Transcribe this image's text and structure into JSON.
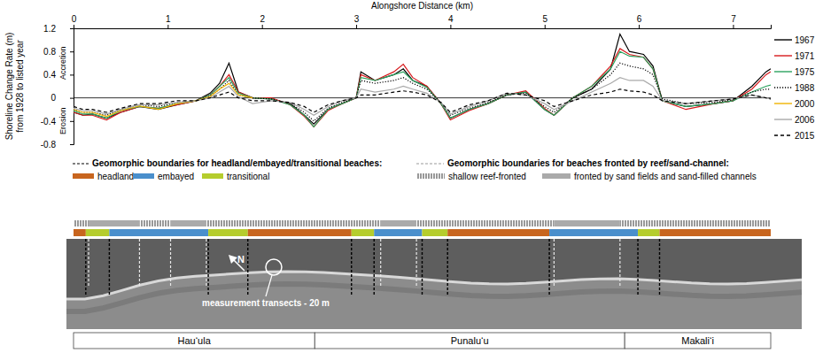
{
  "chart_data": {
    "type": "line",
    "x_label": "Alongshore Distance (km)",
    "y_label": [
      "Shoreline Change Rate (m)",
      "from 1928 to listed year"
    ],
    "annotations": {
      "accretion": "Accretion",
      "erosion": "Erosion",
      "north": "N",
      "transects": "measurement transects - 20 m"
    },
    "x": [
      0,
      0.1,
      0.2,
      0.35,
      0.5,
      0.7,
      0.9,
      1.1,
      1.3,
      1.45,
      1.55,
      1.65,
      1.75,
      1.9,
      2.1,
      2.3,
      2.45,
      2.55,
      2.7,
      2.85,
      3.0,
      3.05,
      3.2,
      3.4,
      3.5,
      3.6,
      3.75,
      3.9,
      4.0,
      4.2,
      4.4,
      4.6,
      4.8,
      5.0,
      5.1,
      5.3,
      5.5,
      5.7,
      5.8,
      5.9,
      6.05,
      6.15,
      6.25,
      6.5,
      6.8,
      7.0,
      7.2,
      7.35,
      7.4
    ],
    "xlim": [
      0,
      7.4
    ],
    "xticks": [
      0,
      1,
      2,
      3,
      4,
      5,
      6,
      7
    ],
    "ylim": [
      -0.8,
      1.2
    ],
    "yticks": [
      -0.8,
      -0.4,
      0,
      0.4,
      0.8,
      1.2
    ],
    "baseline": 0,
    "legend": "right",
    "series": [
      {
        "name": "1967",
        "color": "#000000",
        "line_style": "solid",
        "values": [
          -0.25,
          -0.3,
          -0.28,
          -0.35,
          -0.25,
          -0.15,
          -0.2,
          -0.12,
          -0.05,
          0.08,
          0.25,
          0.6,
          0.1,
          0.0,
          -0.02,
          -0.1,
          -0.3,
          -0.45,
          -0.2,
          -0.1,
          0.0,
          0.45,
          0.3,
          0.4,
          0.5,
          0.3,
          0.2,
          -0.1,
          -0.35,
          -0.2,
          -0.1,
          0.05,
          0.1,
          -0.2,
          -0.3,
          0.0,
          0.15,
          0.5,
          1.1,
          0.8,
          0.75,
          0.55,
          -0.05,
          -0.15,
          -0.1,
          -0.05,
          0.2,
          0.45,
          0.5
        ]
      },
      {
        "name": "1971",
        "color": "#d7191c",
        "line_style": "solid",
        "values": [
          -0.25,
          -0.3,
          -0.3,
          -0.38,
          -0.25,
          -0.15,
          -0.18,
          -0.12,
          -0.05,
          0.05,
          0.2,
          0.4,
          0.1,
          0.0,
          0.0,
          -0.12,
          -0.32,
          -0.5,
          -0.22,
          -0.1,
          0.0,
          0.4,
          0.3,
          0.45,
          0.58,
          0.35,
          0.2,
          -0.1,
          -0.38,
          -0.22,
          -0.1,
          0.05,
          0.12,
          -0.18,
          -0.3,
          0.0,
          0.2,
          0.55,
          0.85,
          0.75,
          0.7,
          0.5,
          -0.05,
          -0.2,
          -0.1,
          -0.05,
          0.15,
          0.4,
          0.45
        ]
      },
      {
        "name": "1975",
        "color": "#2ca25f",
        "line_style": "solid",
        "values": [
          -0.22,
          -0.28,
          -0.28,
          -0.35,
          -0.22,
          -0.15,
          -0.18,
          -0.1,
          -0.05,
          0.05,
          0.2,
          0.35,
          0.08,
          0.0,
          -0.02,
          -0.12,
          -0.3,
          -0.5,
          -0.2,
          -0.1,
          0.0,
          0.35,
          0.3,
          0.4,
          0.45,
          0.3,
          0.18,
          -0.1,
          -0.35,
          -0.2,
          -0.1,
          0.05,
          0.1,
          -0.2,
          -0.3,
          0.0,
          0.2,
          0.5,
          0.8,
          0.72,
          0.7,
          0.5,
          -0.05,
          -0.15,
          -0.1,
          -0.05,
          0.1,
          0.2,
          0.22
        ]
      },
      {
        "name": "1988",
        "color": "#000000",
        "line_style": "dotted",
        "values": [
          -0.2,
          -0.25,
          -0.25,
          -0.3,
          -0.2,
          -0.12,
          -0.15,
          -0.08,
          -0.05,
          0.03,
          0.15,
          0.3,
          0.05,
          0.0,
          -0.02,
          -0.1,
          -0.25,
          -0.4,
          -0.18,
          -0.08,
          0.0,
          0.3,
          0.25,
          0.3,
          0.35,
          0.25,
          0.15,
          -0.08,
          -0.3,
          -0.18,
          -0.08,
          0.05,
          0.08,
          -0.15,
          -0.25,
          0.0,
          0.15,
          0.4,
          0.6,
          0.55,
          0.5,
          0.4,
          -0.02,
          -0.1,
          -0.08,
          -0.03,
          0.1,
          0.15,
          0.15
        ]
      },
      {
        "name": "2000",
        "color": "#f0b400",
        "line_style": "solid",
        "values": [
          -0.2,
          -0.25,
          -0.25,
          -0.32,
          -0.22,
          -0.14,
          -0.2,
          -0.1,
          -0.05,
          0.02,
          0.15,
          0.25,
          0.05,
          0.0,
          null,
          null,
          null,
          null,
          null,
          null,
          null,
          null,
          null,
          null,
          null,
          null,
          null,
          null,
          null,
          null,
          null,
          null,
          null,
          null,
          null,
          null,
          null,
          null,
          null,
          null,
          null,
          null,
          null,
          null,
          null,
          null,
          null,
          null,
          null
        ]
      },
      {
        "name": "2006",
        "color": "#aaaaaa",
        "line_style": "solid",
        "values": [
          -0.18,
          -0.22,
          -0.22,
          -0.28,
          -0.2,
          -0.12,
          -0.12,
          -0.08,
          -0.05,
          0.0,
          0.1,
          0.2,
          0.02,
          -0.1,
          -0.05,
          -0.08,
          -0.2,
          -0.3,
          -0.15,
          -0.05,
          0.0,
          0.15,
          0.1,
          0.15,
          0.2,
          0.15,
          0.08,
          -0.08,
          -0.28,
          -0.15,
          -0.05,
          0.08,
          0.05,
          -0.1,
          -0.2,
          -0.05,
          0.1,
          0.25,
          0.35,
          0.3,
          0.3,
          0.2,
          -0.05,
          -0.1,
          -0.05,
          -0.02,
          0.05,
          0.0,
          -0.02
        ]
      },
      {
        "name": "2015",
        "color": "#000000",
        "line_style": "dashed",
        "values": [
          -0.15,
          -0.2,
          -0.2,
          -0.25,
          -0.18,
          -0.1,
          -0.1,
          -0.05,
          -0.05,
          0.0,
          0.05,
          0.1,
          0.0,
          -0.05,
          -0.05,
          -0.08,
          -0.15,
          -0.25,
          -0.12,
          -0.05,
          0.0,
          0.05,
          0.05,
          0.1,
          0.12,
          0.1,
          0.05,
          -0.08,
          -0.25,
          -0.12,
          -0.05,
          0.08,
          0.05,
          -0.05,
          -0.15,
          -0.05,
          0.05,
          0.1,
          0.15,
          0.12,
          0.1,
          0.05,
          -0.05,
          -0.1,
          -0.05,
          -0.02,
          0.05,
          0.0,
          -0.02
        ]
      }
    ],
    "geomorphic": {
      "title": "Geomorphic boundaries for headland/embayed/transitional beaches:",
      "classes": [
        {
          "name": "headland",
          "color": "#c8651e"
        },
        {
          "name": "embayed",
          "color": "#4a8fcc"
        },
        {
          "name": "transitional",
          "color": "#b5cd2d"
        }
      ],
      "boundaries": [
        0,
        0.13,
        0.38,
        1.43,
        1.85,
        2.95,
        3.19,
        3.7,
        3.97,
        5.05,
        5.99,
        6.22,
        7.4
      ],
      "segments": [
        "headland",
        "transitional",
        "embayed",
        "transitional",
        "headland",
        "transitional",
        "embayed",
        "transitional",
        "headland",
        "embayed",
        "transitional",
        "headland"
      ]
    },
    "reef": {
      "title": "Geomorphic boundaries for beaches fronted by reef/sand-channel:",
      "classes": [
        {
          "name": "shallow reef-fronted",
          "color": "#333333"
        },
        {
          "name": "fronted by sand fields and sand-filled channels",
          "color": "#aaaaaa"
        }
      ],
      "boundaries": [
        0,
        0.16,
        0.7,
        1.03,
        1.41,
        3.26,
        3.64,
        5.1,
        5.8,
        7.4
      ],
      "segments": [
        "shallow reef-fronted",
        "fronted by sand fields and sand-filled channels",
        "shallow reef-fronted",
        "fronted by sand fields and sand-filled channels",
        "shallow reef-fronted",
        "fronted by sand fields and sand-filled channels",
        "shallow reef-fronted",
        "fronted by sand fields and sand-filled channels",
        "shallow reef-fronted"
      ]
    },
    "places": [
      {
        "name": "Hau‘ula",
        "start": 0,
        "end": 2.56
      },
      {
        "name": "Punalu‘u",
        "start": 2.56,
        "end": 5.85
      },
      {
        "name": "Makali‘i",
        "start": 5.85,
        "end": 7.4
      }
    ]
  }
}
